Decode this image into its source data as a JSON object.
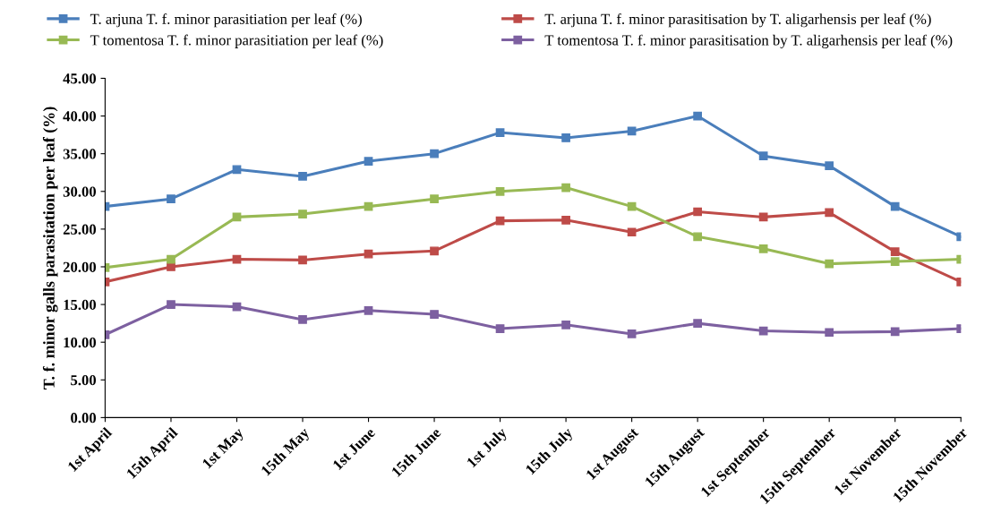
{
  "chart_data": {
    "type": "line",
    "ylabel": "T. f. minor galls parasitation per leaf (%)",
    "categories": [
      "1st April",
      "15th April",
      "1st May",
      "15th May",
      "1st June",
      "15th June",
      "1st July",
      "15th July",
      "1st August",
      "15th August",
      "1st September",
      "15th September",
      "1st November",
      "15th November"
    ],
    "series": [
      {
        "name": "T. arjuna T. f. minor parasitiation per leaf (%)",
        "color": "#4a7ebb",
        "values": [
          28.0,
          29.0,
          32.9,
          32.0,
          34.0,
          35.0,
          37.8,
          37.1,
          38.0,
          40.0,
          34.7,
          33.4,
          28.0,
          24.0
        ]
      },
      {
        "name": "T. arjuna T. f. minor parasitisation by T. aligarhensis per leaf (%)",
        "color": "#be4b48",
        "values": [
          18.0,
          20.0,
          21.0,
          20.9,
          21.7,
          22.1,
          26.1,
          26.2,
          24.6,
          27.3,
          26.6,
          27.2,
          22.0,
          18.0
        ]
      },
      {
        "name": "T tomentosa T. f. minor parasitiation per leaf (%)",
        "color": "#98b954",
        "values": [
          19.9,
          21.0,
          26.6,
          27.0,
          28.0,
          29.0,
          30.0,
          30.5,
          28.0,
          24.0,
          22.4,
          20.4,
          20.7,
          21.0
        ]
      },
      {
        "name": "T tomentosa T. f. minor parasitisation by T. aligarhensis per leaf (%)",
        "color": "#7d60a0",
        "values": [
          11.0,
          15.0,
          14.7,
          13.0,
          14.2,
          13.7,
          11.8,
          12.3,
          11.1,
          12.5,
          11.5,
          11.3,
          11.4,
          11.8
        ]
      }
    ],
    "ylim": [
      0,
      45
    ],
    "yticks": [
      {
        "value": 0,
        "label": "0.00"
      },
      {
        "value": 5,
        "label": "5.00"
      },
      {
        "value": 10,
        "label": "10.00"
      },
      {
        "value": 15,
        "label": "15.00"
      },
      {
        "value": 20,
        "label": "20.00"
      },
      {
        "value": 25,
        "label": "25.00"
      },
      {
        "value": 30,
        "label": "30.00"
      },
      {
        "value": 35,
        "label": "35.00"
      },
      {
        "value": 40,
        "label": "40.00"
      },
      {
        "value": 45,
        "label": "45.00"
      }
    ],
    "marker": "square",
    "line_style": "solid",
    "legend": "top",
    "grid": false
  }
}
